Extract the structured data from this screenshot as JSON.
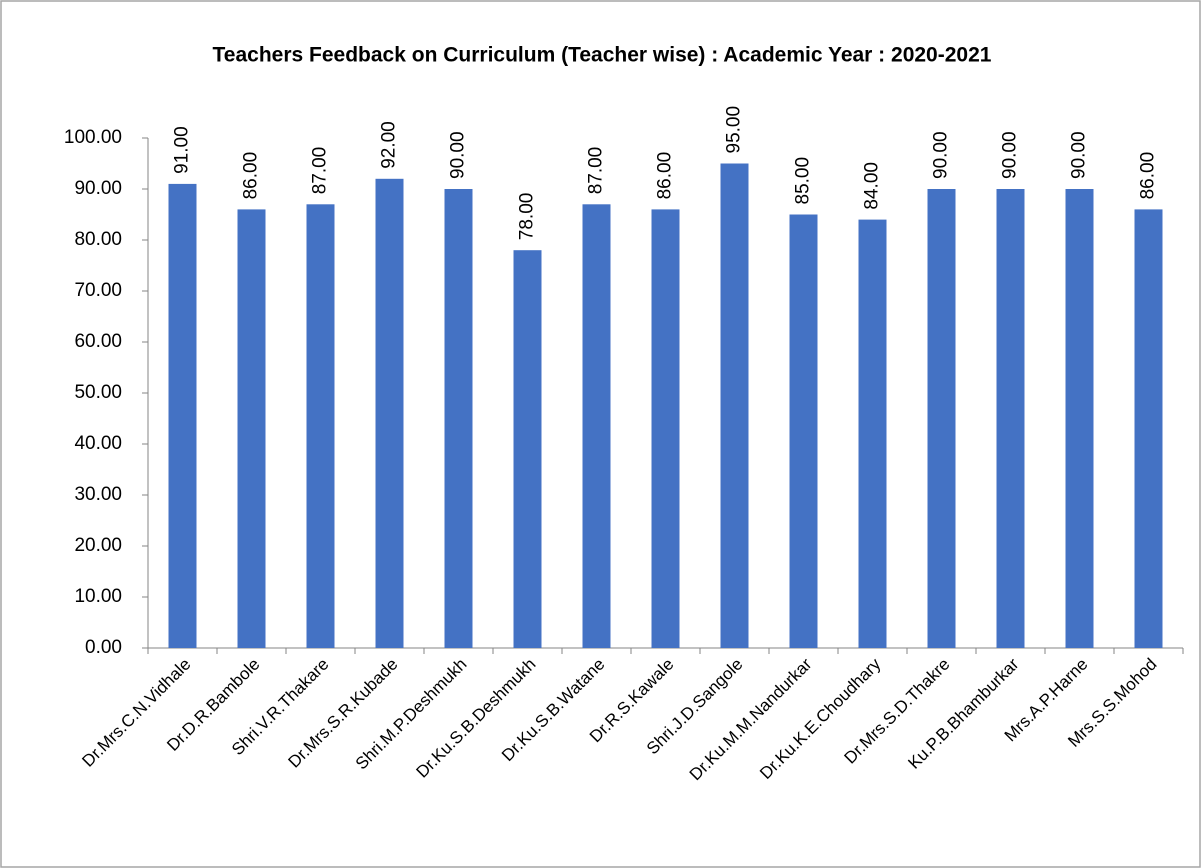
{
  "chart_data": {
    "type": "bar",
    "title": "Teachers Feedback on Curriculum (Teacher wise) : Academic Year : 2020-2021",
    "categories": [
      "Dr.Mrs.C.N.Vidhale",
      "Dr.D.R.Bambole",
      "Shri.V.R.Thakare",
      "Dr.Mrs.S.R.Kubade",
      "Shri.M.P.Deshmukh",
      "Dr.Ku.S.B.Deshmukh",
      "Dr.Ku.S.B.Watane",
      "Dr.R.S.Kawale",
      "Shri.J.D.Sangole",
      "Dr.Ku.M.M.Nandurkar",
      "Dr.Ku.K.E.Choudhary",
      "Dr.Mrs.S.D.Thakre",
      "Ku.P.B.Bhamburkar",
      "Mrs.A.P.Harne",
      "Mrs.S.S.Mohod"
    ],
    "values": [
      91,
      86,
      87,
      92,
      90,
      78,
      87,
      86,
      95,
      85,
      84,
      90,
      90,
      90,
      86
    ],
    "value_labels": [
      "91.00",
      "86.00",
      "87.00",
      "92.00",
      "90.00",
      "78.00",
      "87.00",
      "86.00",
      "95.00",
      "85.00",
      "84.00",
      "90.00",
      "90.00",
      "90.00",
      "86.00"
    ],
    "color": "#4472c4",
    "ylim": [
      0,
      100
    ],
    "yticks": [
      {
        "value": 0,
        "label": "0.00"
      },
      {
        "value": 10,
        "label": "10.00"
      },
      {
        "value": 20,
        "label": "20.00"
      },
      {
        "value": 30,
        "label": "30.00"
      },
      {
        "value": 40,
        "label": "40.00"
      },
      {
        "value": 50,
        "label": "50.00"
      },
      {
        "value": 60,
        "label": "60.00"
      },
      {
        "value": 70,
        "label": "70.00"
      },
      {
        "value": 80,
        "label": "80.00"
      },
      {
        "value": 90,
        "label": "90.00"
      },
      {
        "value": 100,
        "label": "100.00"
      }
    ],
    "grid": false
  }
}
